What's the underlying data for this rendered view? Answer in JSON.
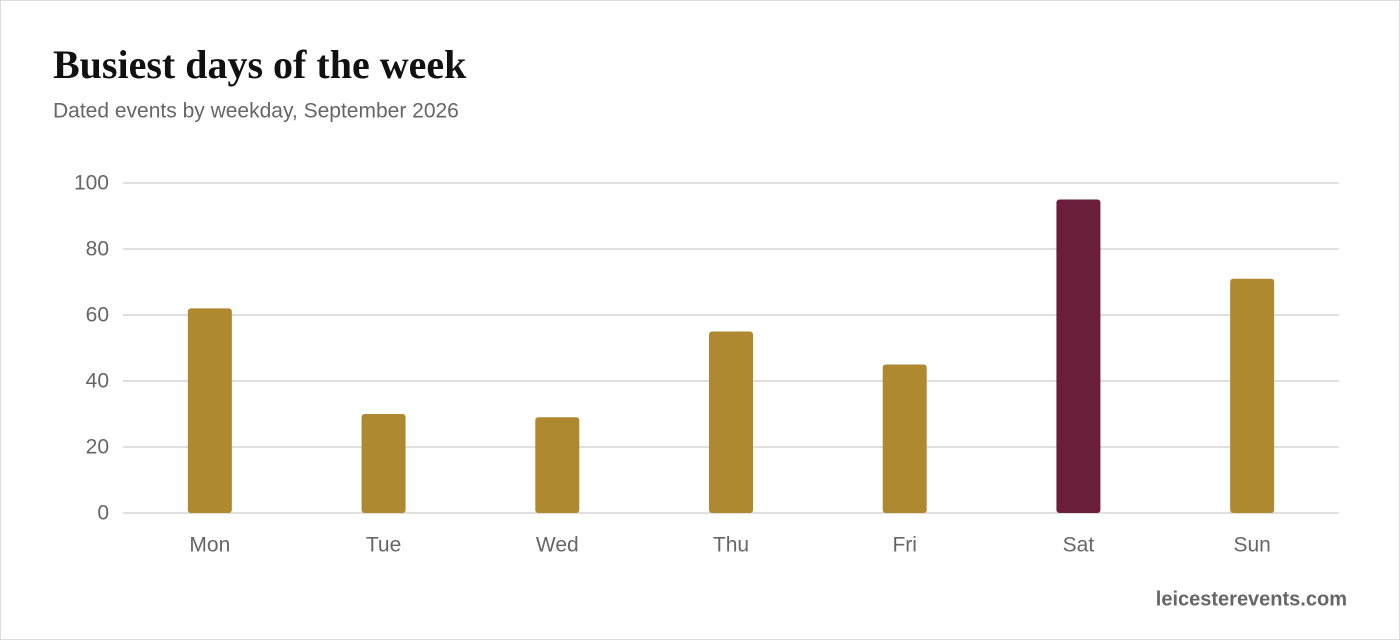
{
  "chart_data": {
    "type": "bar",
    "title": "Busiest days of the week",
    "subtitle": "Dated events by weekday, September 2026",
    "categories": [
      "Mon",
      "Tue",
      "Wed",
      "Thu",
      "Fri",
      "Sat",
      "Sun"
    ],
    "values": [
      62,
      30,
      29,
      55,
      45,
      95,
      71
    ],
    "colors": [
      "#ae8930",
      "#ae8930",
      "#ae8930",
      "#ae8930",
      "#ae8930",
      "#6b1e3b",
      "#ae8930"
    ],
    "ylim": [
      0,
      100
    ],
    "yticks": [
      0,
      20,
      40,
      60,
      80,
      100
    ],
    "grid": true,
    "source": "leicesterevents.com"
  }
}
